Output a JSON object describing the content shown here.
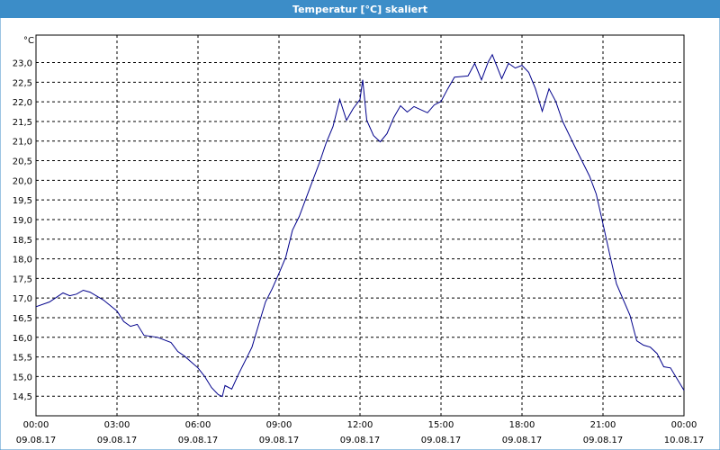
{
  "chart_data": {
    "type": "line",
    "title": "Temperatur [°C] skaliert",
    "y_unit": "°C",
    "x": [
      0,
      0.5,
      1,
      1.25,
      1.5,
      1.75,
      2,
      2.5,
      3,
      3.25,
      3.5,
      3.75,
      4,
      4.5,
      5,
      5.25,
      5.5,
      6,
      6.25,
      6.5,
      6.75,
      6.9,
      7,
      7.25,
      7.5,
      8,
      8.25,
      8.5,
      8.75,
      9,
      9.25,
      9.5,
      9.75,
      10,
      10.25,
      10.5,
      10.75,
      11,
      11.25,
      11.5,
      11.75,
      12,
      12.1,
      12.25,
      12.5,
      12.75,
      13,
      13.25,
      13.5,
      13.75,
      14,
      14.5,
      14.75,
      15,
      15.25,
      15.5,
      16,
      16.25,
      16.5,
      16.75,
      16.9,
      17.25,
      17.5,
      17.75,
      18,
      18.25,
      18.5,
      18.75,
      19,
      19.25,
      19.5,
      20,
      20.5,
      20.75,
      21,
      21.25,
      21.5,
      22,
      22.25,
      22.5,
      22.75,
      23,
      23.25,
      23.5,
      24
    ],
    "series": [
      {
        "name": "Temperatur",
        "color": "#00008b",
        "values": [
          16.78,
          16.9,
          17.13,
          17.06,
          17.1,
          17.2,
          17.15,
          16.95,
          16.67,
          16.4,
          16.28,
          16.33,
          16.05,
          16.0,
          15.87,
          15.64,
          15.52,
          15.22,
          15.0,
          14.72,
          14.54,
          14.49,
          14.77,
          14.68,
          15.06,
          15.75,
          16.33,
          16.9,
          17.24,
          17.63,
          18.04,
          18.73,
          19.08,
          19.54,
          20.0,
          20.45,
          20.96,
          21.37,
          22.06,
          21.53,
          21.83,
          22.06,
          22.56,
          21.53,
          21.14,
          20.98,
          21.19,
          21.6,
          21.9,
          21.74,
          21.88,
          21.72,
          21.92,
          22.01,
          22.33,
          22.63,
          22.66,
          22.98,
          22.56,
          23.02,
          23.2,
          22.59,
          22.98,
          22.86,
          22.93,
          22.75,
          22.33,
          21.76,
          22.33,
          22.01,
          21.51,
          20.8,
          20.11,
          19.65,
          18.89,
          18.11,
          17.36,
          16.56,
          15.91,
          15.8,
          15.75,
          15.59,
          15.25,
          15.22,
          14.65
        ]
      }
    ],
    "xlim": [
      0,
      24
    ],
    "xticks": [
      {
        "value": 0,
        "label": "00:00"
      },
      {
        "value": 3,
        "label": "03:00"
      },
      {
        "value": 6,
        "label": "06:00"
      },
      {
        "value": 9,
        "label": "09:00"
      },
      {
        "value": 12,
        "label": "12:00"
      },
      {
        "value": 15,
        "label": "15:00"
      },
      {
        "value": 18,
        "label": "18:00"
      },
      {
        "value": 21,
        "label": "21:00"
      },
      {
        "value": 24,
        "label": "00:00"
      }
    ],
    "xtick_dates": [
      "09.08.17",
      "09.08.17",
      "09.08.17",
      "09.08.17",
      "09.08.17",
      "09.08.17",
      "09.08.17",
      "09.08.17",
      "10.08.17"
    ],
    "ylim": [
      14,
      23.7
    ],
    "yticks": [
      {
        "value": 14.5,
        "label": "14,5"
      },
      {
        "value": 15,
        "label": "15,0"
      },
      {
        "value": 15.5,
        "label": "15,5"
      },
      {
        "value": 16,
        "label": "16,0"
      },
      {
        "value": 16.5,
        "label": "16,5"
      },
      {
        "value": 17,
        "label": "17,0"
      },
      {
        "value": 17.5,
        "label": "17,5"
      },
      {
        "value": 18,
        "label": "18,0"
      },
      {
        "value": 18.5,
        "label": "18,5"
      },
      {
        "value": 19,
        "label": "19,0"
      },
      {
        "value": 19.5,
        "label": "19,5"
      },
      {
        "value": 20,
        "label": "20,0"
      },
      {
        "value": 20.5,
        "label": "20,5"
      },
      {
        "value": 21,
        "label": "21,0"
      },
      {
        "value": 21.5,
        "label": "21,5"
      },
      {
        "value": 22,
        "label": "22,0"
      },
      {
        "value": 22.5,
        "label": "22,5"
      },
      {
        "value": 23,
        "label": "23,0"
      }
    ],
    "grid": true
  }
}
